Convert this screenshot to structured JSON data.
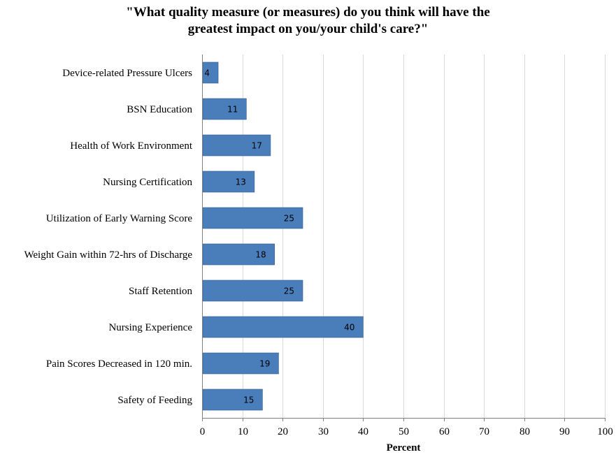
{
  "chart_data": {
    "type": "bar",
    "orientation": "horizontal",
    "title_lines": [
      "\"What quality measure (or measures) do you think will have the",
      "greatest impact on you/your child's care?\""
    ],
    "xlabel": "Percent",
    "ylabel": "",
    "xlim": [
      0,
      100
    ],
    "xticks": [
      0,
      10,
      20,
      30,
      40,
      50,
      60,
      70,
      80,
      90,
      100
    ],
    "grid": "vertical",
    "bar_color": "#4a7ebb",
    "grid_color": "#d9d9d9",
    "categories": [
      "Device-related Pressure Ulcers",
      "BSN Education",
      "Health of Work Environment",
      "Nursing Certification",
      "Utilization of Early Warning Score",
      "Weight Gain within 72-hrs of Discharge",
      "Staff Retention",
      "Nursing Experience",
      "Pain Scores Decreased in 120 min.",
      "Safety of Feeding"
    ],
    "values": [
      4,
      11,
      17,
      13,
      25,
      18,
      25,
      40,
      19,
      15
    ]
  }
}
